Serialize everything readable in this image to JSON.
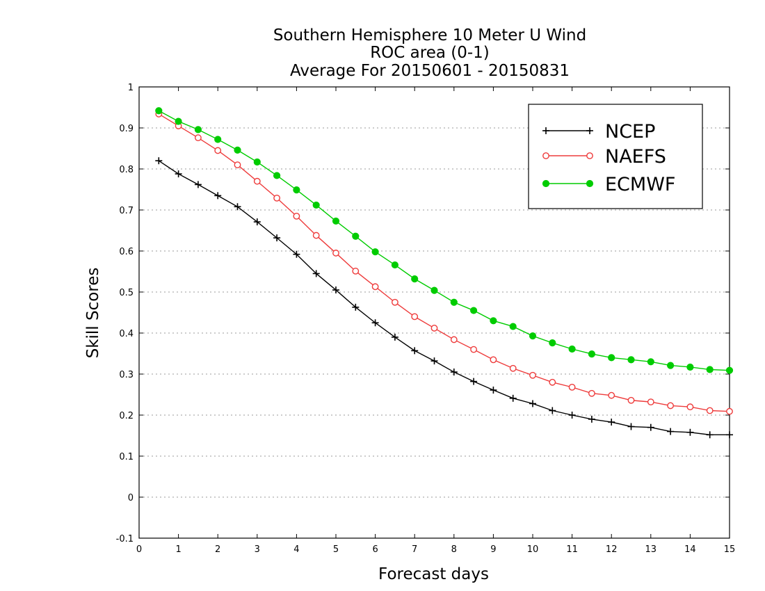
{
  "chart_data": {
    "type": "line",
    "title_lines": [
      "Southern Hemisphere 10 Meter U Wind",
      "ROC area (0-1)",
      "Average For 20150601 - 20150831"
    ],
    "xlabel": "Forecast days",
    "ylabel": "Skill Scores",
    "xlim": [
      0,
      15
    ],
    "ylim": [
      -0.1,
      1
    ],
    "x_ticks": [
      0,
      1,
      2,
      3,
      4,
      5,
      6,
      7,
      8,
      9,
      10,
      11,
      12,
      13,
      14,
      15
    ],
    "x_tick_labels": [
      "0",
      "1",
      "2",
      "3",
      "4",
      "5",
      "6",
      "7",
      "8",
      "9",
      "10",
      "11",
      "12",
      "13",
      "14",
      "15"
    ],
    "y_ticks": [
      -0.1,
      0,
      0.1,
      0.2,
      0.3,
      0.4,
      0.5,
      0.6,
      0.7,
      0.8,
      0.9,
      1
    ],
    "y_tick_labels": [
      "-0.1",
      "0",
      "0.1",
      "0.2",
      "0.3",
      "0.4",
      "0.5",
      "0.6",
      "0.7",
      "0.8",
      "0.9",
      "1"
    ],
    "grid": "horizontal dotted",
    "legend_position": "top-right",
    "x": [
      0.5,
      1,
      1.5,
      2,
      2.5,
      3,
      3.5,
      4,
      4.5,
      5,
      5.5,
      6,
      6.5,
      7,
      7.5,
      8,
      8.5,
      9,
      9.5,
      10,
      10.5,
      11,
      11.5,
      12,
      12.5,
      13,
      13.5,
      14,
      14.5,
      15
    ],
    "series": [
      {
        "name": "NCEP",
        "color": "#000000",
        "marker": "plus",
        "values": [
          0.82,
          0.788,
          0.762,
          0.735,
          0.708,
          0.671,
          0.632,
          0.592,
          0.545,
          0.505,
          0.463,
          0.425,
          0.39,
          0.357,
          0.332,
          0.305,
          0.282,
          0.261,
          0.241,
          0.228,
          0.211,
          0.2,
          0.19,
          0.183,
          0.172,
          0.17,
          0.16,
          0.158,
          0.152,
          0.152
        ]
      },
      {
        "name": "NAEFS",
        "color": "#ee3b3b",
        "marker": "open-circle",
        "values": [
          0.934,
          0.905,
          0.876,
          0.845,
          0.81,
          0.77,
          0.729,
          0.685,
          0.638,
          0.595,
          0.551,
          0.513,
          0.475,
          0.44,
          0.412,
          0.384,
          0.36,
          0.335,
          0.314,
          0.297,
          0.28,
          0.268,
          0.253,
          0.248,
          0.236,
          0.232,
          0.223,
          0.22,
          0.211,
          0.209
        ]
      },
      {
        "name": "ECMWF",
        "color": "#00cc00",
        "marker": "filled-circle",
        "values": [
          0.942,
          0.916,
          0.896,
          0.872,
          0.846,
          0.817,
          0.784,
          0.749,
          0.712,
          0.673,
          0.636,
          0.598,
          0.566,
          0.532,
          0.504,
          0.475,
          0.455,
          0.43,
          0.416,
          0.393,
          0.376,
          0.361,
          0.349,
          0.34,
          0.335,
          0.33,
          0.321,
          0.317,
          0.311,
          0.309
        ]
      }
    ]
  }
}
